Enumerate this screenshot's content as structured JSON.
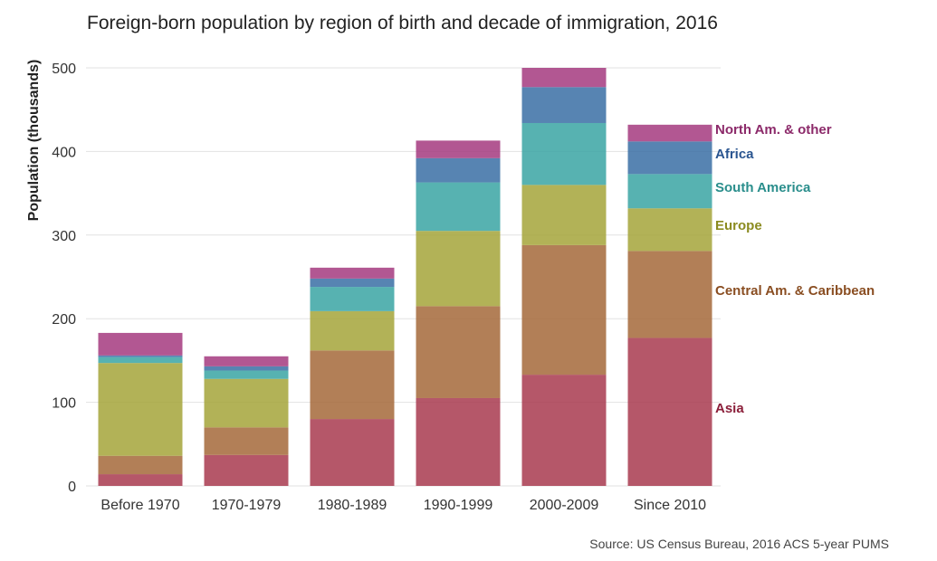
{
  "chart_data": {
    "type": "bar",
    "stacked": true,
    "title": "Foreign-born population by region of birth and decade of immigration, 2016",
    "ylabel": "Population (thousands)",
    "xlabel": "",
    "source": "Source: US Census Bureau, 2016 ACS 5-year PUMS",
    "ylim": [
      0,
      520
    ],
    "yticks": [
      0,
      100,
      200,
      300,
      400,
      500
    ],
    "grid": true,
    "legend_position": "right, labels at end of last bar",
    "categories": [
      "Before 1970",
      "1970-1979",
      "1980-1989",
      "1990-1999",
      "2000-2009",
      "Since 2010"
    ],
    "series": [
      {
        "name": "Asia",
        "color": "#a8394f",
        "values": [
          14,
          37,
          80,
          105,
          133,
          177
        ]
      },
      {
        "name": "Central Am. & Caribbean",
        "color": "#a5683a",
        "values": [
          22,
          33,
          82,
          110,
          155,
          104
        ]
      },
      {
        "name": "Europe",
        "color": "#a5a53a",
        "values": [
          111,
          58,
          47,
          90,
          72,
          51
        ]
      },
      {
        "name": "South America",
        "color": "#3aa5a3",
        "values": [
          7,
          10,
          29,
          58,
          74,
          41
        ]
      },
      {
        "name": "Africa",
        "color": "#3a6ea5",
        "values": [
          2,
          5,
          10,
          29,
          43,
          39
        ]
      },
      {
        "name": "North Am. & other",
        "color": "#a53a7f",
        "values": [
          27,
          12,
          13,
          21,
          23,
          20
        ]
      }
    ],
    "label_colors": {
      "Asia": "#8b1f3a",
      "Central Am. & Caribbean": "#8a4e22",
      "Europe": "#8b8b20",
      "South America": "#2a8e8c",
      "Africa": "#2a5590",
      "North Am. & other": "#8c2a6a"
    }
  }
}
